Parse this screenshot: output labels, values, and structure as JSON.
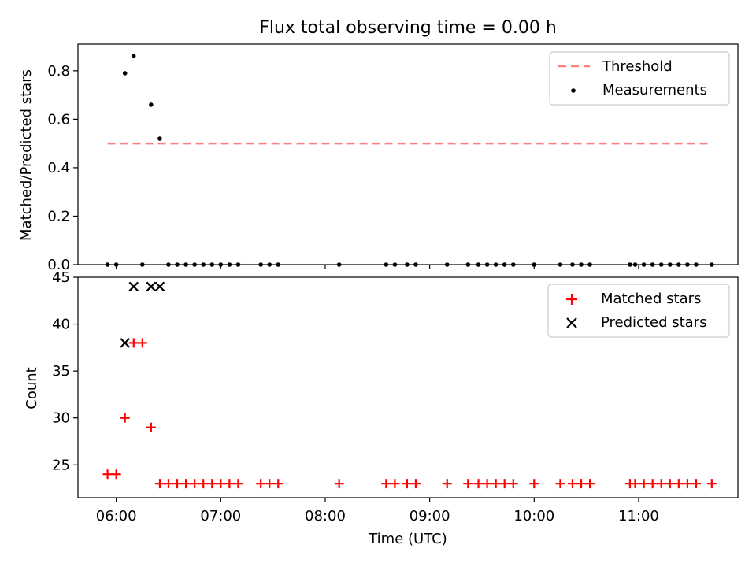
{
  "chart_data": [
    {
      "type": "scatter",
      "title": "Flux total observing time = 0.00 h",
      "xlabel": "",
      "ylabel": "Matched/Predicted stars",
      "x_unit": "time of day (UTC)",
      "xlim": [
        "05:38",
        "11:57"
      ],
      "ylim": [
        0,
        0.91
      ],
      "yticks": [
        0.0,
        0.2,
        0.4,
        0.6,
        0.8
      ],
      "yticklabels": [
        "0.0",
        "0.2",
        "0.4",
        "0.6",
        "0.8"
      ],
      "grid": false,
      "legend_position": "upper right",
      "threshold": {
        "name": "Threshold",
        "value": 0.5,
        "x_range": [
          "05:55",
          "11:40"
        ],
        "color": "#ff7f7f",
        "style": "dashed"
      },
      "series": [
        {
          "name": "Measurements",
          "marker": "dot",
          "color": "#000000",
          "points": [
            [
              "05:55",
              0
            ],
            [
              "06:00",
              0
            ],
            [
              "06:05",
              0.79
            ],
            [
              "06:10",
              0.86
            ],
            [
              "06:15",
              0
            ],
            [
              "06:20",
              0.66
            ],
            [
              "06:25",
              0.52
            ],
            [
              "06:30",
              0
            ],
            [
              "06:35",
              0
            ],
            [
              "06:40",
              0
            ],
            [
              "06:45",
              0
            ],
            [
              "06:50",
              0
            ],
            [
              "06:55",
              0
            ],
            [
              "07:00",
              0
            ],
            [
              "07:05",
              0
            ],
            [
              "07:10",
              0
            ],
            [
              "07:23",
              0
            ],
            [
              "07:28",
              0
            ],
            [
              "07:33",
              0
            ],
            [
              "08:08",
              0
            ],
            [
              "08:35",
              0
            ],
            [
              "08:40",
              0
            ],
            [
              "08:47",
              0
            ],
            [
              "08:52",
              0
            ],
            [
              "09:10",
              0
            ],
            [
              "09:22",
              0
            ],
            [
              "09:28",
              0
            ],
            [
              "09:33",
              0
            ],
            [
              "09:38",
              0
            ],
            [
              "09:43",
              0
            ],
            [
              "09:48",
              0
            ],
            [
              "10:00",
              0
            ],
            [
              "10:15",
              0
            ],
            [
              "10:22",
              0
            ],
            [
              "10:27",
              0
            ],
            [
              "10:32",
              0
            ],
            [
              "10:55",
              0
            ],
            [
              "10:58",
              0
            ],
            [
              "11:03",
              0
            ],
            [
              "11:08",
              0
            ],
            [
              "11:13",
              0
            ],
            [
              "11:18",
              0
            ],
            [
              "11:23",
              0
            ],
            [
              "11:28",
              0
            ],
            [
              "11:33",
              0
            ],
            [
              "11:42",
              0
            ]
          ]
        }
      ]
    },
    {
      "type": "scatter",
      "title": "",
      "xlabel": "Time (UTC)",
      "ylabel": "Count",
      "x_unit": "time of day (UTC)",
      "xlim": [
        "05:38",
        "11:57"
      ],
      "ylim": [
        21.5,
        45
      ],
      "xticks": [
        "06:00",
        "07:00",
        "08:00",
        "09:00",
        "10:00",
        "11:00"
      ],
      "yticks": [
        25,
        30,
        35,
        40,
        45
      ],
      "yticklabels": [
        "25",
        "30",
        "35",
        "40",
        "45"
      ],
      "grid": false,
      "legend_position": "upper right",
      "series": [
        {
          "name": "Matched stars",
          "marker": "plus",
          "color": "#ff0000",
          "points": [
            [
              "05:55",
              24
            ],
            [
              "06:00",
              24
            ],
            [
              "06:05",
              30
            ],
            [
              "06:10",
              38
            ],
            [
              "06:15",
              38
            ],
            [
              "06:20",
              29
            ],
            [
              "06:25",
              23
            ],
            [
              "06:30",
              23
            ],
            [
              "06:35",
              23
            ],
            [
              "06:40",
              23
            ],
            [
              "06:45",
              23
            ],
            [
              "06:50",
              23
            ],
            [
              "06:55",
              23
            ],
            [
              "07:00",
              23
            ],
            [
              "07:05",
              23
            ],
            [
              "07:10",
              23
            ],
            [
              "07:23",
              23
            ],
            [
              "07:28",
              23
            ],
            [
              "07:33",
              23
            ],
            [
              "08:08",
              23
            ],
            [
              "08:35",
              23
            ],
            [
              "08:40",
              23
            ],
            [
              "08:47",
              23
            ],
            [
              "08:52",
              23
            ],
            [
              "09:10",
              23
            ],
            [
              "09:22",
              23
            ],
            [
              "09:28",
              23
            ],
            [
              "09:33",
              23
            ],
            [
              "09:38",
              23
            ],
            [
              "09:43",
              23
            ],
            [
              "09:48",
              23
            ],
            [
              "10:00",
              23
            ],
            [
              "10:15",
              23
            ],
            [
              "10:22",
              23
            ],
            [
              "10:27",
              23
            ],
            [
              "10:32",
              23
            ],
            [
              "10:55",
              23
            ],
            [
              "10:58",
              23
            ],
            [
              "11:03",
              23
            ],
            [
              "11:08",
              23
            ],
            [
              "11:13",
              23
            ],
            [
              "11:18",
              23
            ],
            [
              "11:23",
              23
            ],
            [
              "11:28",
              23
            ],
            [
              "11:33",
              23
            ],
            [
              "11:42",
              23
            ]
          ]
        },
        {
          "name": "Predicted stars",
          "marker": "x",
          "color": "#000000",
          "points": [
            [
              "06:05",
              38
            ],
            [
              "06:10",
              44
            ],
            [
              "06:20",
              44
            ],
            [
              "06:25",
              44
            ]
          ]
        }
      ]
    }
  ]
}
